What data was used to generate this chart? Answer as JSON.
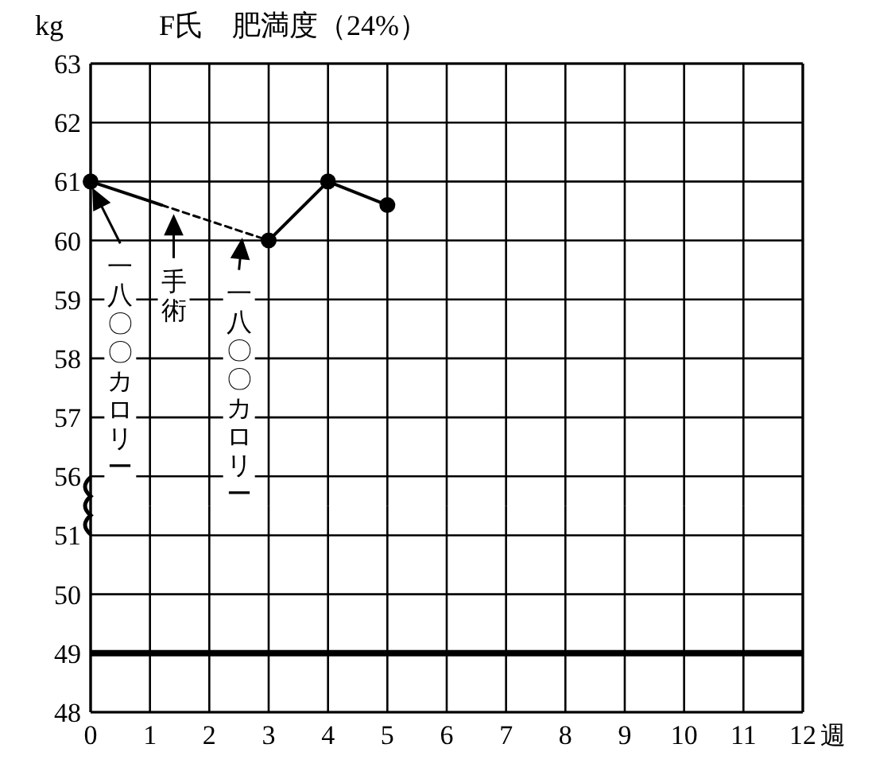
{
  "chart_data": [
    {
      "type": "line",
      "title": "F氏　肥満度（24%）",
      "ylabel": "kg",
      "xlim": [
        0,
        12
      ],
      "xticks": [
        0,
        1,
        2,
        3,
        4,
        5,
        6,
        7,
        8,
        9,
        10,
        11,
        12
      ],
      "ylim": [
        55.5,
        63
      ],
      "yticks": [
        56,
        57,
        58,
        59,
        60,
        61,
        62,
        63
      ],
      "grid": true,
      "tick_labels": "y",
      "series": [
        {
          "color": "#000000",
          "x": [
            0,
            1.2
          ],
          "values": [
            61.0,
            60.6
          ],
          "line_style": "solid",
          "marker": "none"
        },
        {
          "color": "#000000",
          "x": [
            1.2,
            3
          ],
          "values": [
            60.6,
            60.0
          ],
          "line_style": "dashed",
          "marker": "none"
        },
        {
          "color": "#000000",
          "x": [
            3,
            4,
            5
          ],
          "values": [
            60.0,
            61.0,
            60.6
          ],
          "line_style": "solid",
          "marker": "none"
        },
        {
          "type": "scatter",
          "color": "#000000",
          "x": [
            0,
            3,
            4,
            5
          ],
          "values": [
            61.0,
            60.0,
            61.0,
            60.6
          ],
          "marker": "circle"
        }
      ],
      "annotations": [
        {
          "text": "一八〇〇カロリー",
          "x": 0.05,
          "y": 60.85
        },
        {
          "text": "手術",
          "x": 1.4,
          "y": 60.4
        },
        {
          "text": "一八〇〇カロリー",
          "x": 2.55,
          "y": 60.0
        }
      ]
    },
    {
      "type": "line",
      "xlabel": "週",
      "xlim": [
        0,
        12
      ],
      "xticks": [
        0,
        1,
        2,
        3,
        4,
        5,
        6,
        7,
        8,
        9,
        10,
        11,
        12
      ],
      "ylim": [
        48,
        51.5
      ],
      "yticks": [
        48,
        49,
        50,
        51
      ],
      "grid": true,
      "ref_lines": [
        {
          "axis": "y",
          "value": 49,
          "color": "#000000"
        }
      ]
    }
  ]
}
